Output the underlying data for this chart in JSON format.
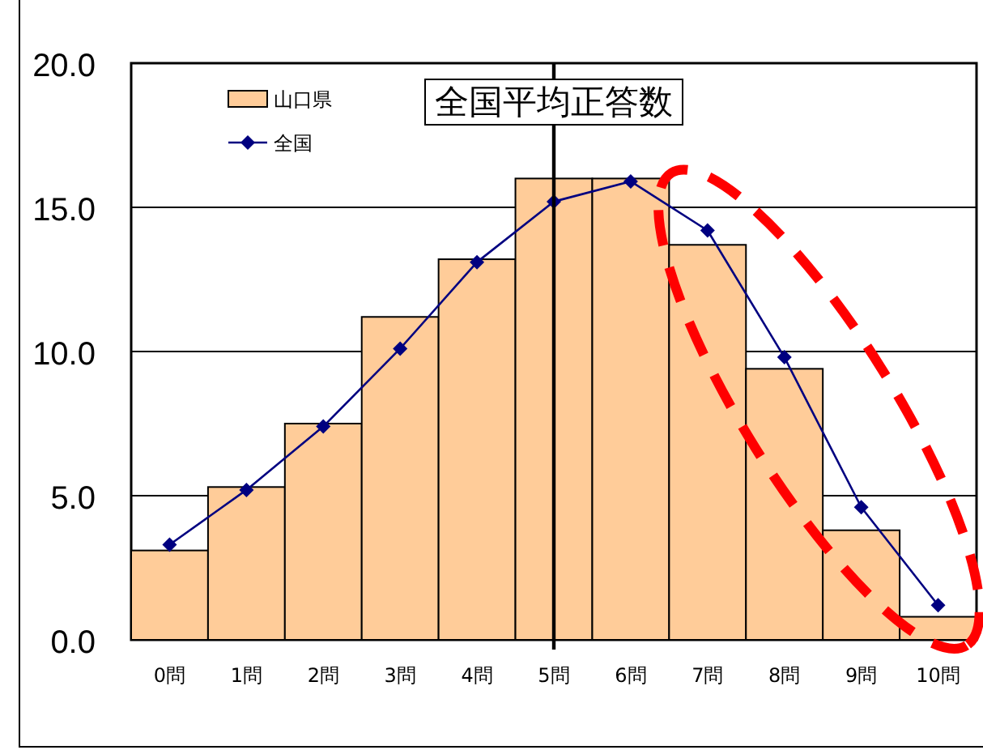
{
  "chart_data": {
    "type": "bar",
    "categories": [
      "0問",
      "1問",
      "2問",
      "3問",
      "4問",
      "5問",
      "6問",
      "7問",
      "8問",
      "9問",
      "10問"
    ],
    "series": [
      {
        "name": "山口県",
        "color": "#ffcc99",
        "values": [
          3.1,
          5.3,
          7.5,
          11.2,
          13.2,
          16.0,
          16.0,
          13.7,
          9.4,
          3.8,
          0.8
        ]
      },
      {
        "name": "全国",
        "type": "line",
        "color": "#000080",
        "marker": "diamond",
        "values": [
          3.3,
          5.2,
          7.4,
          10.1,
          13.1,
          15.2,
          15.9,
          14.2,
          9.8,
          4.6,
          1.2
        ]
      }
    ],
    "ylim": [
      0,
      20
    ],
    "yticks": [
      {
        "value": 0,
        "label": "0.0"
      },
      {
        "value": 5,
        "label": "5.0"
      },
      {
        "value": 10,
        "label": "10.0"
      },
      {
        "value": 15,
        "label": "15.0"
      },
      {
        "value": 20,
        "label": "20.0"
      }
    ],
    "grid": "y",
    "legend": "top left",
    "ref_lines": [
      {
        "axis": "x",
        "value": "5問",
        "label": "全国平均正答数",
        "color": "#000000"
      }
    ]
  }
}
